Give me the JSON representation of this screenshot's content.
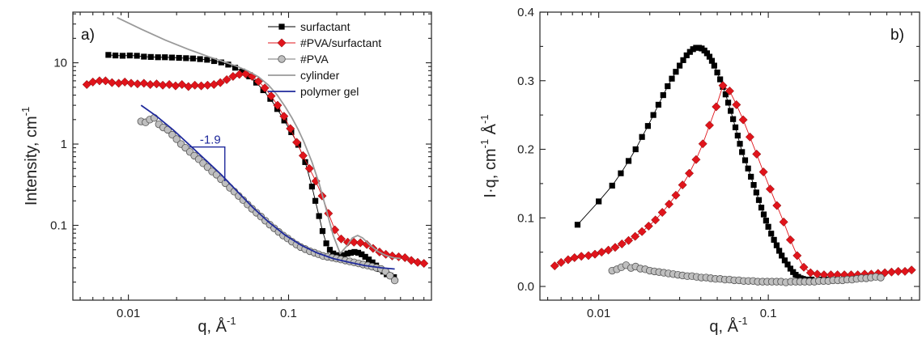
{
  "chart_data": [
    {
      "type": "scatter",
      "panel_label": "a)",
      "xlabel": "q, Å",
      "xlabel_exp": "-1",
      "ylabel": "Intensity, cm",
      "ylabel_exp": "-1",
      "xscale": "log",
      "yscale": "log",
      "xlim": [
        0.0045,
        0.78
      ],
      "ylim": [
        0.012,
        42
      ],
      "xticks": [
        0.01,
        0.1
      ],
      "xtick_labels": [
        "0.01",
        "0.1"
      ],
      "yticks": [
        0.1,
        1,
        10
      ],
      "ytick_labels": [
        "0.1",
        "1",
        "10"
      ],
      "legend_position": "top-right",
      "annotation": {
        "text": "-1.9",
        "color": "#1f2a9c",
        "slope": -1.9
      },
      "series": [
        {
          "name": "surfactant",
          "marker": "square",
          "color": "#000000",
          "line": true,
          "x": [
            0.0075,
            0.0083,
            0.0092,
            0.0102,
            0.0113,
            0.0125,
            0.0138,
            0.0153,
            0.0169,
            0.0187,
            0.0207,
            0.0229,
            0.0253,
            0.028,
            0.031,
            0.0343,
            0.038,
            0.042,
            0.0464,
            0.0514,
            0.0568,
            0.0628,
            0.0695,
            0.0769,
            0.085,
            0.094,
            0.104,
            0.115,
            0.127,
            0.14,
            0.147,
            0.155,
            0.163,
            0.172,
            0.181,
            0.19,
            0.2,
            0.21,
            0.221,
            0.233,
            0.245,
            0.258,
            0.272,
            0.286,
            0.301,
            0.317,
            0.334,
            0.352,
            0.37,
            0.39,
            0.41,
            0.432,
            0.455
          ],
          "y": [
            12.5,
            12.3,
            12.2,
            12.3,
            12.2,
            11.9,
            11.8,
            11.7,
            11.7,
            11.6,
            11.5,
            11.4,
            11.3,
            11.1,
            10.9,
            10.5,
            10.1,
            9.5,
            8.7,
            7.8,
            6.8,
            5.7,
            4.6,
            3.6,
            2.7,
            1.95,
            1.4,
            0.98,
            0.6,
            0.3,
            0.2,
            0.13,
            0.085,
            0.06,
            0.05,
            0.045,
            0.043,
            0.042,
            0.043,
            0.045,
            0.046,
            0.047,
            0.046,
            0.044,
            0.041,
            0.038,
            0.035,
            0.032,
            0.029,
            0.027,
            0.025,
            0.024,
            0.023
          ]
        },
        {
          "name": "#PVA/surfactant",
          "marker": "diamond",
          "color": "#e0141b",
          "line": true,
          "x": [
            0.0055,
            0.006,
            0.0066,
            0.0072,
            0.0079,
            0.0087,
            0.0095,
            0.0104,
            0.0114,
            0.0125,
            0.0137,
            0.015,
            0.0164,
            0.018,
            0.0197,
            0.0216,
            0.0237,
            0.026,
            0.0285,
            0.0312,
            0.0342,
            0.0375,
            0.0411,
            0.045,
            0.0493,
            0.054,
            0.0592,
            0.0649,
            0.0711,
            0.0779,
            0.0854,
            0.0936,
            0.1026,
            0.1124,
            0.1232,
            0.135,
            0.148,
            0.162,
            0.1775,
            0.1945,
            0.213,
            0.234,
            0.256,
            0.281,
            0.308,
            0.337,
            0.37,
            0.405,
            0.444,
            0.487,
            0.533,
            0.584,
            0.64,
            0.7
          ],
          "y": [
            5.4,
            5.8,
            6.0,
            6.0,
            5.7,
            5.6,
            5.8,
            5.6,
            5.5,
            5.6,
            5.4,
            5.5,
            5.3,
            5.4,
            5.2,
            5.4,
            5.1,
            5.3,
            5.2,
            5.3,
            5.4,
            5.7,
            6.2,
            6.8,
            7.2,
            7.3,
            6.8,
            5.9,
            4.9,
            3.9,
            3.0,
            2.2,
            1.55,
            1.05,
            0.72,
            0.5,
            0.35,
            0.23,
            0.14,
            0.088,
            0.068,
            0.062,
            0.062,
            0.061,
            0.058,
            0.052,
            0.047,
            0.044,
            0.042,
            0.041,
            0.04,
            0.037,
            0.035,
            0.034
          ]
        },
        {
          "name": "#PVA",
          "marker": "circle",
          "color": "#bfbfbf",
          "line": true,
          "x": [
            0.012,
            0.0128,
            0.0136,
            0.0145,
            0.0155,
            0.0165,
            0.0176,
            0.0188,
            0.02,
            0.0213,
            0.0227,
            0.0242,
            0.0258,
            0.0275,
            0.0293,
            0.0312,
            0.0333,
            0.0355,
            0.0378,
            0.0403,
            0.043,
            0.0458,
            0.0488,
            0.052,
            0.0555,
            0.0591,
            0.063,
            0.0672,
            0.0716,
            0.0763,
            0.0814,
            0.0867,
            0.0925,
            0.0986,
            0.105,
            0.112,
            0.119,
            0.127,
            0.136,
            0.145,
            0.154,
            0.164,
            0.175,
            0.187,
            0.199,
            0.212,
            0.226,
            0.241,
            0.257,
            0.274,
            0.292,
            0.312,
            0.332,
            0.354,
            0.378,
            0.403,
            0.43,
            0.46
          ],
          "y": [
            1.9,
            1.85,
            2.0,
            2.1,
            1.75,
            1.6,
            1.5,
            1.3,
            1.15,
            1.0,
            0.9,
            0.8,
            0.72,
            0.65,
            0.58,
            0.52,
            0.46,
            0.42,
            0.37,
            0.33,
            0.29,
            0.26,
            0.23,
            0.205,
            0.18,
            0.16,
            0.143,
            0.128,
            0.114,
            0.102,
            0.092,
            0.083,
            0.075,
            0.069,
            0.063,
            0.058,
            0.054,
            0.051,
            0.048,
            0.046,
            0.044,
            0.042,
            0.041,
            0.04,
            0.039,
            0.038,
            0.037,
            0.036,
            0.035,
            0.034,
            0.033,
            0.032,
            0.031,
            0.03,
            0.029,
            0.027,
            0.024,
            0.021
          ]
        },
        {
          "name": "cylinder",
          "marker": "none",
          "color": "#9a9a9a",
          "line": true,
          "x": [
            0.0085,
            0.012,
            0.017,
            0.024,
            0.032,
            0.04,
            0.048,
            0.056,
            0.065,
            0.075,
            0.085,
            0.095,
            0.105,
            0.115,
            0.125,
            0.14,
            0.155,
            0.17,
            0.19,
            0.21,
            0.23,
            0.25,
            0.27,
            0.29,
            0.32,
            0.36,
            0.4,
            0.45,
            0.5
          ],
          "y": [
            36,
            26,
            19,
            14.5,
            11.8,
            10.2,
            9.0,
            7.9,
            6.7,
            5.3,
            4.0,
            2.9,
            2.1,
            1.5,
            1.05,
            0.6,
            0.33,
            0.17,
            0.075,
            0.045,
            0.055,
            0.07,
            0.075,
            0.07,
            0.058,
            0.048,
            0.043,
            0.04,
            0.039
          ]
        },
        {
          "name": "polymer gel",
          "marker": "none",
          "color": "#1f2a9c",
          "line": true,
          "x": [
            0.012,
            0.015,
            0.019,
            0.024,
            0.03,
            0.038,
            0.048,
            0.06,
            0.075,
            0.095,
            0.12,
            0.15,
            0.19,
            0.24,
            0.3,
            0.38,
            0.46
          ],
          "y": [
            3.0,
            2.2,
            1.5,
            0.98,
            0.65,
            0.42,
            0.26,
            0.165,
            0.11,
            0.076,
            0.057,
            0.046,
            0.039,
            0.035,
            0.032,
            0.03,
            0.029
          ]
        }
      ]
    },
    {
      "type": "scatter",
      "panel_label": "b)",
      "xlabel": "q, Å",
      "xlabel_exp": "-1",
      "ylabel": "I·q, cm",
      "ylabel_exp1": "-1",
      "ylabel_mid": " Å",
      "ylabel_exp2": "-1",
      "xscale": "log",
      "yscale": "linear",
      "xlim": [
        0.0045,
        0.78
      ],
      "ylim": [
        -0.02,
        0.4
      ],
      "xticks": [
        0.01,
        0.1
      ],
      "xtick_labels": [
        "0.01",
        "0.1"
      ],
      "yticks": [
        0.0,
        0.1,
        0.2,
        0.3,
        0.4
      ],
      "ytick_labels": [
        "0.0",
        "0.1",
        "0.2",
        "0.3",
        "0.4"
      ],
      "series": [
        {
          "name": "surfactant",
          "marker": "square",
          "color": "#000000",
          "line": true,
          "x": [
            0.0075,
            0.01,
            0.012,
            0.0135,
            0.015,
            0.0165,
            0.018,
            0.0195,
            0.021,
            0.0225,
            0.024,
            0.0255,
            0.027,
            0.0285,
            0.03,
            0.0315,
            0.033,
            0.0345,
            0.036,
            0.0375,
            0.039,
            0.0405,
            0.042,
            0.0435,
            0.045,
            0.0465,
            0.048,
            0.05,
            0.052,
            0.054,
            0.056,
            0.058,
            0.06,
            0.062,
            0.064,
            0.066,
            0.068,
            0.07,
            0.073,
            0.076,
            0.079,
            0.082,
            0.085,
            0.088,
            0.091,
            0.094,
            0.097,
            0.1,
            0.104,
            0.108,
            0.112,
            0.116,
            0.12,
            0.125,
            0.13,
            0.135,
            0.14,
            0.145,
            0.15,
            0.155,
            0.16,
            0.165,
            0.17,
            0.18,
            0.2,
            0.22,
            0.25,
            0.28,
            0.32,
            0.36,
            0.4,
            0.45
          ],
          "y": [
            0.09,
            0.124,
            0.147,
            0.165,
            0.183,
            0.2,
            0.218,
            0.234,
            0.25,
            0.265,
            0.279,
            0.292,
            0.303,
            0.313,
            0.322,
            0.33,
            0.337,
            0.342,
            0.346,
            0.348,
            0.348,
            0.347,
            0.344,
            0.34,
            0.335,
            0.329,
            0.322,
            0.312,
            0.302,
            0.291,
            0.28,
            0.268,
            0.256,
            0.244,
            0.232,
            0.22,
            0.208,
            0.196,
            0.184,
            0.172,
            0.16,
            0.148,
            0.137,
            0.126,
            0.115,
            0.105,
            0.096,
            0.087,
            0.077,
            0.068,
            0.06,
            0.052,
            0.045,
            0.038,
            0.032,
            0.026,
            0.021,
            0.017,
            0.014,
            0.012,
            0.011,
            0.01,
            0.01,
            0.01,
            0.01,
            0.01,
            0.01,
            0.011,
            0.012,
            0.013,
            0.014,
            0.014
          ]
        },
        {
          "name": "#PVA/surfactant",
          "marker": "diamond",
          "color": "#e0141b",
          "line": true,
          "x": [
            0.0055,
            0.006,
            0.0066,
            0.0072,
            0.0079,
            0.0087,
            0.0095,
            0.0104,
            0.0114,
            0.0125,
            0.0137,
            0.015,
            0.0164,
            0.018,
            0.0197,
            0.0216,
            0.0237,
            0.026,
            0.0285,
            0.0312,
            0.0342,
            0.0375,
            0.0411,
            0.045,
            0.0493,
            0.054,
            0.0592,
            0.0649,
            0.0711,
            0.0779,
            0.0854,
            0.0936,
            0.1026,
            0.1124,
            0.1232,
            0.135,
            0.148,
            0.162,
            0.1775,
            0.1945,
            0.213,
            0.234,
            0.256,
            0.281,
            0.308,
            0.337,
            0.37,
            0.405,
            0.444,
            0.487,
            0.533,
            0.584,
            0.64,
            0.7
          ],
          "y": [
            0.03,
            0.035,
            0.039,
            0.042,
            0.044,
            0.045,
            0.047,
            0.05,
            0.053,
            0.057,
            0.062,
            0.067,
            0.073,
            0.08,
            0.088,
            0.097,
            0.108,
            0.12,
            0.133,
            0.148,
            0.165,
            0.185,
            0.208,
            0.235,
            0.262,
            0.293,
            0.285,
            0.265,
            0.243,
            0.218,
            0.193,
            0.167,
            0.142,
            0.118,
            0.094,
            0.068,
            0.045,
            0.028,
            0.02,
            0.018,
            0.017,
            0.017,
            0.017,
            0.017,
            0.017,
            0.017,
            0.018,
            0.018,
            0.019,
            0.02,
            0.021,
            0.022,
            0.022,
            0.024
          ]
        },
        {
          "name": "#PVA",
          "marker": "circle",
          "color": "#bfbfbf",
          "line": true,
          "x": [
            0.012,
            0.0128,
            0.0136,
            0.0145,
            0.0155,
            0.0165,
            0.0176,
            0.0188,
            0.02,
            0.0213,
            0.0227,
            0.0242,
            0.0258,
            0.0275,
            0.0293,
            0.0312,
            0.0333,
            0.0355,
            0.0378,
            0.0403,
            0.043,
            0.0458,
            0.0488,
            0.052,
            0.0555,
            0.0591,
            0.063,
            0.0672,
            0.0716,
            0.0763,
            0.0814,
            0.0867,
            0.0925,
            0.0986,
            0.105,
            0.112,
            0.119,
            0.127,
            0.136,
            0.145,
            0.154,
            0.164,
            0.175,
            0.187,
            0.199,
            0.212,
            0.226,
            0.241,
            0.257,
            0.274,
            0.292,
            0.312,
            0.332,
            0.354,
            0.378,
            0.403,
            0.43,
            0.46
          ],
          "y": [
            0.023,
            0.025,
            0.028,
            0.031,
            0.027,
            0.029,
            0.026,
            0.025,
            0.023,
            0.022,
            0.021,
            0.02,
            0.019,
            0.018,
            0.017,
            0.016,
            0.015,
            0.015,
            0.014,
            0.013,
            0.013,
            0.012,
            0.011,
            0.011,
            0.01,
            0.01,
            0.009,
            0.009,
            0.008,
            0.008,
            0.008,
            0.007,
            0.007,
            0.007,
            0.007,
            0.007,
            0.007,
            0.006,
            0.007,
            0.007,
            0.007,
            0.007,
            0.007,
            0.007,
            0.008,
            0.008,
            0.008,
            0.009,
            0.009,
            0.009,
            0.01,
            0.01,
            0.011,
            0.012,
            0.012,
            0.013,
            0.014,
            0.013
          ]
        }
      ]
    }
  ]
}
